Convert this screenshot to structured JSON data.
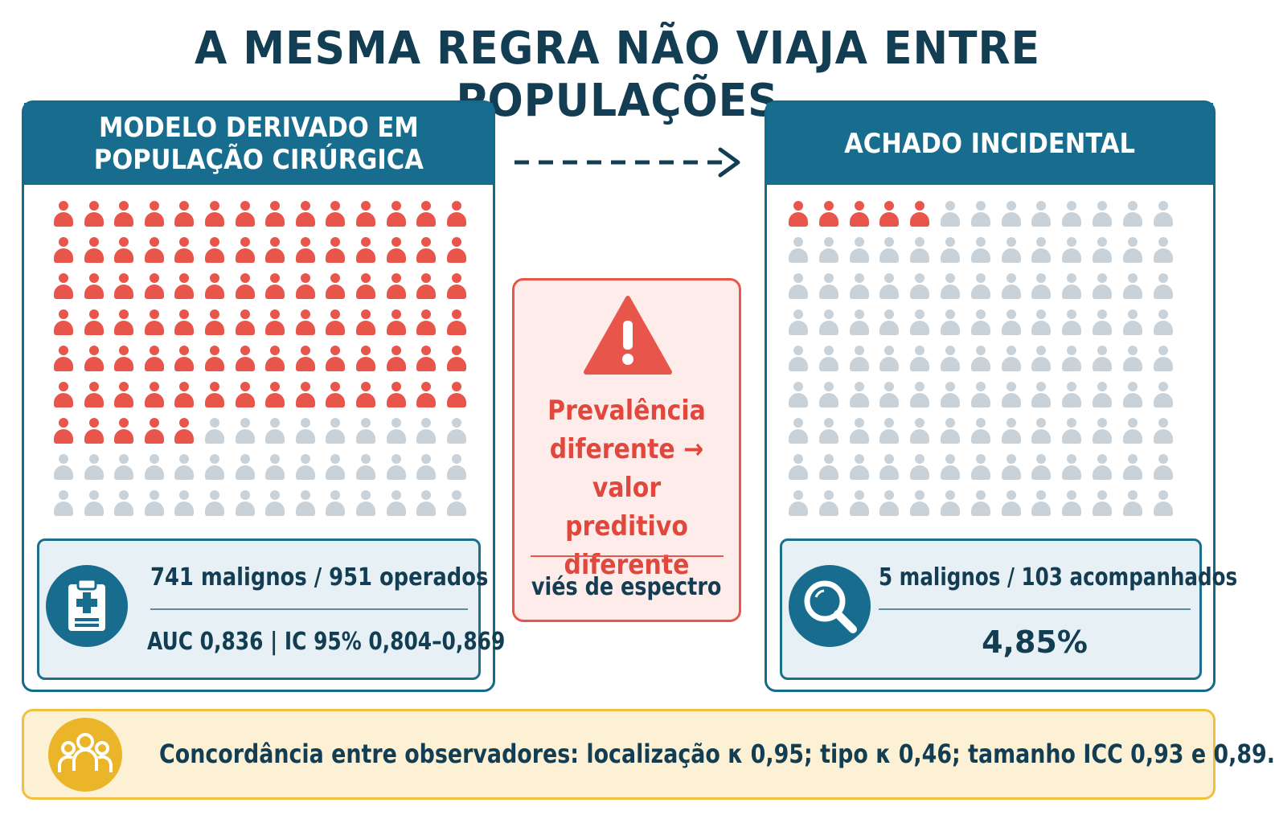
{
  "title": "A MESMA REGRA NÃO VIAJA ENTRE POPULAÇÕES",
  "left_panel": {
    "header_line1": "MODELO DERIVADO EM",
    "header_line2": "POPULAÇÃO CIRÚRGICA",
    "grid": {
      "rows": 9,
      "cols": 14,
      "highlighted": 89
    },
    "stat_primary": "741 malignos / 951 operados",
    "stat_secondary": "AUC 0,836 | IC 95% 0,804–0,869",
    "icon": "clipboard-medical-icon"
  },
  "right_panel": {
    "header": "ACHADO INCIDENTAL",
    "grid": {
      "rows": 9,
      "cols": 13,
      "highlighted": 5
    },
    "stat_primary": "5 malignos / 103 acompanhados",
    "stat_secondary": "4,85%",
    "icon": "magnifier-icon"
  },
  "warning": {
    "line1": "Prevalência",
    "line2": "diferente →",
    "line3": "valor preditivo",
    "line4": "diferente",
    "subtext": "viés de espectro",
    "icon": "warning-triangle-icon"
  },
  "footer": {
    "text": "Concordância entre observadores: localização κ 0,95; tipo κ 0,46; tamanho ICC 0,93 e 0,89.",
    "icon": "group-people-icon"
  },
  "colors": {
    "accent": "#186c8d",
    "highlight": "#e8554a",
    "neutral": "#c9d2d8",
    "footer_accent": "#ebb52a"
  }
}
